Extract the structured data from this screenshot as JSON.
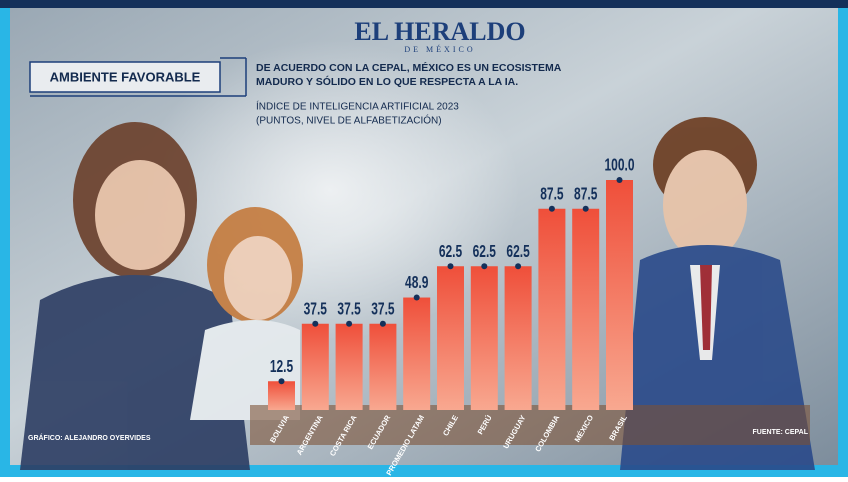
{
  "brand": {
    "name": "EL HERALDO",
    "sub": "DE MÉXICO"
  },
  "headline": "AMBIENTE FAVORABLE",
  "intro": [
    "DE ACUERDO CON LA CEPAL, MÉXICO ES UN ECOSISTEMA",
    "MADURO Y SÓLIDO EN LO QUE RESPECTA A LA IA."
  ],
  "credit": "GRÁFICO: ALEJANDRO OYERVIDES",
  "source": "FUENTE: CEPAL",
  "chart_data": {
    "type": "bar",
    "title": "ÍNDICE DE INTELIGENCIA ARTIFICIAL 2023",
    "subtitle": "(PUNTOS, NIVEL DE ALFABETIZACIÓN)",
    "categories": [
      "BOLIVIA",
      "ARGENTINA",
      "COSTA RICA",
      "ECUADOR",
      "PROMEDIO LATAM",
      "CHILE",
      "PERÚ",
      "URUGUAY",
      "COLOMBIA",
      "MÉXICO",
      "BRASIL"
    ],
    "values": [
      12.5,
      37.5,
      37.5,
      37.5,
      48.9,
      62.5,
      62.5,
      62.5,
      87.5,
      87.5,
      100
    ],
    "value_labels": [
      "12.5",
      "37.5",
      "37.5",
      "37.5",
      "48.9",
      "62.5",
      "62.5",
      "62.5",
      "87.5",
      "87.5",
      "100.0"
    ],
    "color": "#f0553f",
    "ylim": [
      0,
      100
    ]
  }
}
